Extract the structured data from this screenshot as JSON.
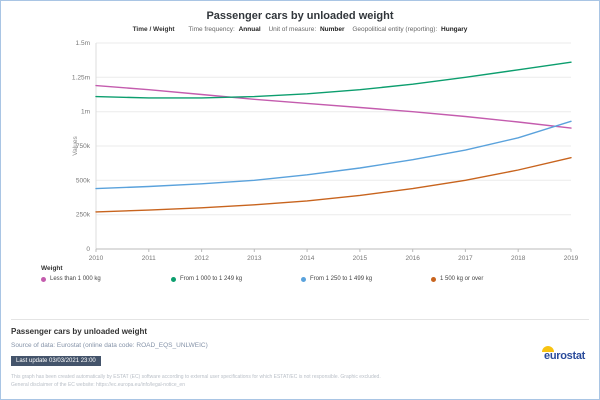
{
  "header": {
    "title": "Passenger cars by unloaded weight",
    "meta_title": "Time / Weight",
    "meta": [
      {
        "label": "Time frequency:",
        "value": "Annual"
      },
      {
        "label": "Unit of measure:",
        "value": "Number"
      },
      {
        "label": "Geopolitical entity (reporting):",
        "value": "Hungary"
      }
    ]
  },
  "chart_data": {
    "type": "line",
    "title": "Passenger cars by unloaded weight",
    "xlabel": "Time",
    "ylabel": "Values",
    "ylim": [
      0,
      1500000
    ],
    "grid": true,
    "legend_position": "bottom",
    "x": [
      2010,
      2011,
      2012,
      2013,
      2014,
      2015,
      2016,
      2017,
      2018,
      2019
    ],
    "y_ticks": [
      {
        "value": 0,
        "label": "0"
      },
      {
        "value": 250000,
        "label": "250k"
      },
      {
        "value": 500000,
        "label": "500k"
      },
      {
        "value": 750000,
        "label": "750k"
      },
      {
        "value": 1000000,
        "label": "1m"
      },
      {
        "value": 1250000,
        "label": "1.25m"
      },
      {
        "value": 1500000,
        "label": "1.5m"
      }
    ],
    "series": [
      {
        "name": "Less than 1 000 kg",
        "color": "#c45cae",
        "values": [
          1190000,
          1160000,
          1125000,
          1090000,
          1060000,
          1030000,
          1000000,
          965000,
          925000,
          880000
        ]
      },
      {
        "name": "From 1 000 to 1 249 kg",
        "color": "#0c9e6e",
        "values": [
          1110000,
          1100000,
          1100000,
          1110000,
          1130000,
          1160000,
          1200000,
          1250000,
          1305000,
          1360000
        ]
      },
      {
        "name": "From 1 250 to 1 499 kg",
        "color": "#5aa2dc",
        "values": [
          440000,
          455000,
          475000,
          500000,
          540000,
          590000,
          650000,
          720000,
          810000,
          930000
        ]
      },
      {
        "name": "1 500 kg or over",
        "color": "#c8641e",
        "values": [
          270000,
          283000,
          300000,
          322000,
          350000,
          390000,
          440000,
          500000,
          575000,
          665000
        ]
      }
    ]
  },
  "legend": {
    "title": "Weight"
  },
  "footer": {
    "title": "Passenger cars by unloaded weight",
    "source": "Source of data: Eurostat (online data code: ROAD_EQS_UNLWEIC)",
    "last_update": "Last update 03/03/2021 23:00",
    "disclaimer1": "This graph has been created automatically by ESTAT (EC) software according to external user specifications for which ESTAT/EC is not responsible. Graphic excluded.",
    "disclaimer2": "General disclaimer of the EC website: https://ec.europa.eu/info/legal-notice_en",
    "logo": "eurostat"
  }
}
